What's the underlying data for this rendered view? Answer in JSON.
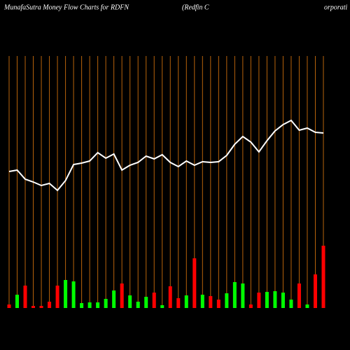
{
  "chart_data": {
    "type": "moneyflow",
    "title": "MunafaSutra  Money Flow  Charts for RDFN",
    "subtitle": "(Redfin  C",
    "subtitle_right": "orporati",
    "categories": [
      null,
      null,
      null,
      null,
      null,
      null,
      null,
      null,
      null,
      null,
      null,
      null,
      null,
      null,
      null,
      null,
      null,
      null,
      null,
      null,
      null,
      null,
      null,
      null,
      null,
      null,
      null,
      null,
      null,
      null,
      null,
      null,
      null,
      null,
      null,
      null,
      null,
      null,
      null,
      null
    ],
    "ylim": [
      0,
      360
    ],
    "series": [
      {
        "kind": "line",
        "color": "#ffffff",
        "values": [
          195,
          197,
          184,
          180,
          175,
          178,
          168,
          182,
          205,
          207,
          210,
          222,
          214,
          220,
          197,
          204,
          208,
          217,
          213,
          219,
          208,
          202,
          210,
          204,
          209,
          208,
          209,
          218,
          234,
          245,
          237,
          223,
          239,
          253,
          262,
          268,
          254,
          257,
          251,
          250
        ]
      },
      {
        "kind": "bar",
        "values": [
          5,
          19,
          32,
          3,
          3,
          9,
          32,
          40,
          38,
          7,
          8,
          8,
          13,
          25,
          35,
          18,
          9,
          16,
          22,
          4,
          31,
          14,
          18,
          71,
          19,
          17,
          12,
          21,
          37,
          35,
          5,
          22,
          23,
          24,
          22,
          12,
          35,
          5,
          48,
          89
        ],
        "colors": [
          "#ff0000",
          "#00ff00",
          "#ff0000",
          "#ff0000",
          "#ff0000",
          "#ff0000",
          "#ff0000",
          "#00ff00",
          "#00ff00",
          "#00ff00",
          "#00ff00",
          "#00ff00",
          "#00ff00",
          "#00ff00",
          "#ff0000",
          "#00ff00",
          "#00ff00",
          "#00ff00",
          "#ff0000",
          "#00ff00",
          "#ff0000",
          "#ff0000",
          "#00ff00",
          "#ff0000",
          "#00ff00",
          "#ff0000",
          "#ff0000",
          "#00ff00",
          "#00ff00",
          "#00ff00",
          "#ff0000",
          "#ff0000",
          "#00ff00",
          "#00ff00",
          "#00ff00",
          "#00ff00",
          "#ff0000",
          "#00ff00",
          "#ff0000",
          "#ff0000"
        ]
      }
    ],
    "grid_color": "#b8630b"
  }
}
